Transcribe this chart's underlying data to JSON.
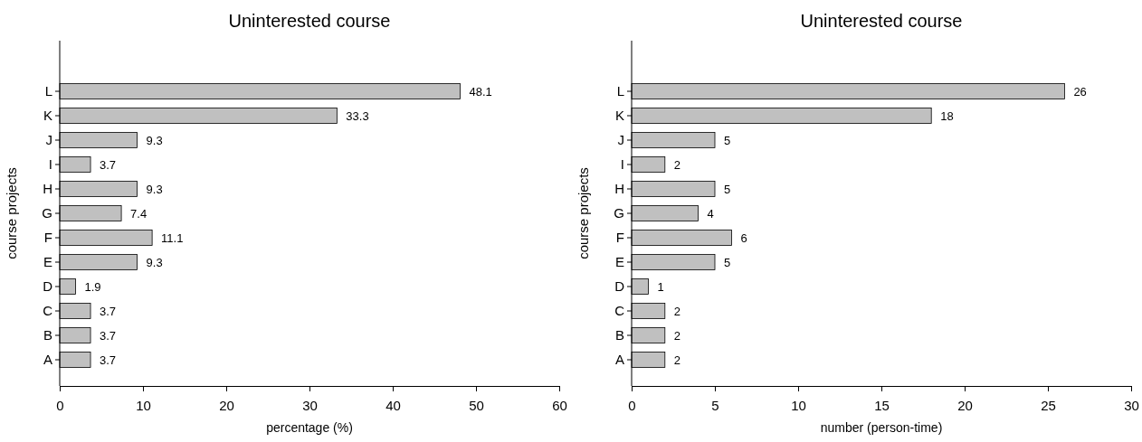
{
  "chart_data": [
    {
      "type": "bar",
      "orientation": "horizontal",
      "title": "Uninterested course",
      "xlabel": "percentage (%)",
      "ylabel": "course projects",
      "categories": [
        "L",
        "K",
        "J",
        "I",
        "H",
        "G",
        "F",
        "E",
        "D",
        "C",
        "B",
        "A"
      ],
      "values": [
        48.1,
        33.3,
        9.3,
        3.7,
        9.3,
        7.4,
        11.1,
        9.3,
        1.9,
        3.7,
        3.7,
        3.7
      ],
      "color": "#c0c0c0",
      "xlim": [
        0,
        60
      ],
      "xticks": [
        0,
        10,
        20,
        30,
        40,
        50,
        60
      ],
      "grid": false,
      "data_labels": true
    },
    {
      "type": "bar",
      "orientation": "horizontal",
      "title": "Uninterested course",
      "xlabel": "number (person-time)",
      "ylabel": "course projects",
      "categories": [
        "L",
        "K",
        "J",
        "I",
        "H",
        "G",
        "F",
        "E",
        "D",
        "C",
        "B",
        "A"
      ],
      "values": [
        26,
        18,
        5,
        2,
        5,
        4,
        6,
        5,
        1,
        2,
        2,
        2
      ],
      "color": "#c0c0c0",
      "xlim": [
        0,
        30
      ],
      "xticks": [
        0,
        5,
        10,
        15,
        20,
        25,
        30
      ],
      "grid": false,
      "data_labels": true
    }
  ]
}
